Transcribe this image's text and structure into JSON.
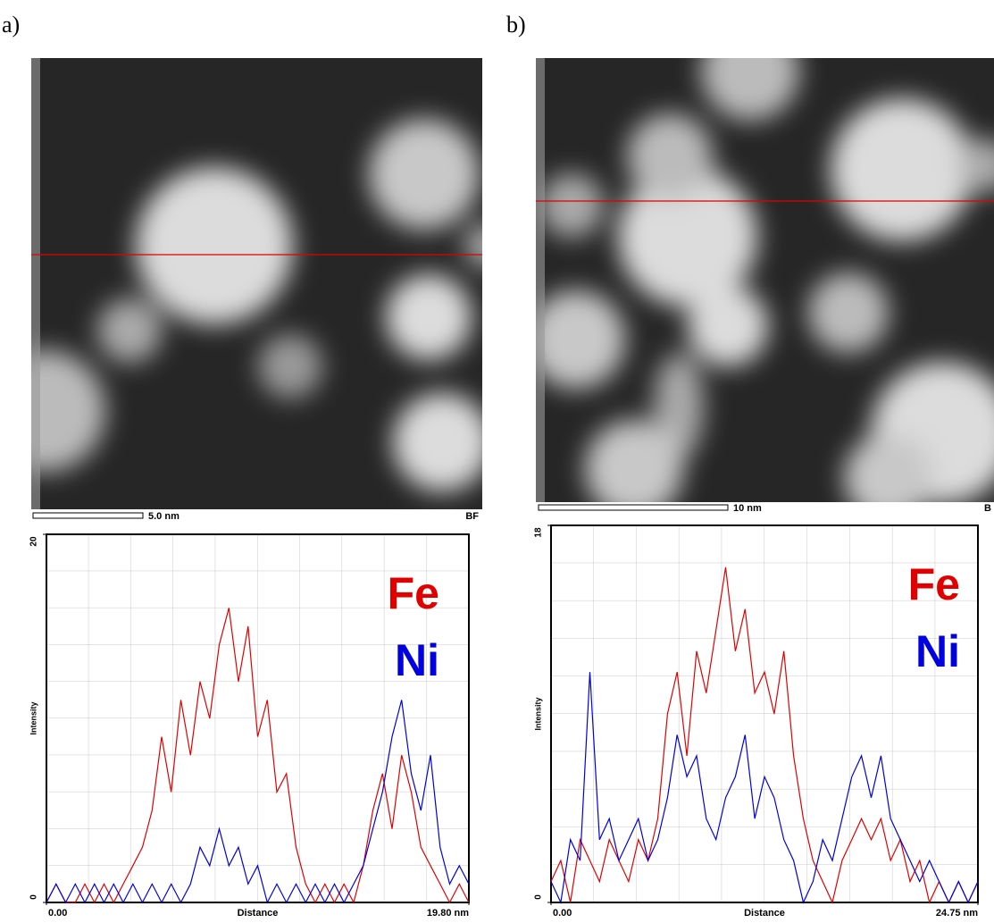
{
  "panel_labels": [
    "a)",
    "b)"
  ],
  "images": [
    {
      "scale_bar": "5.0 nm",
      "corner": "BF"
    },
    {
      "scale_bar": "10 nm",
      "corner": "B"
    }
  ],
  "chart_data": [
    {
      "type": "line",
      "y_label": "Intensity",
      "x_label": "Distance",
      "xlim": [
        0,
        19.8
      ],
      "xticks": [
        {
          "value": 0,
          "label": "0.00"
        },
        {
          "value": 19.8,
          "label": "19.80 nm"
        }
      ],
      "ylim": [
        0,
        20
      ],
      "yticks": [
        0,
        20
      ],
      "grid": true,
      "x": [
        0,
        0.45,
        0.9,
        1.35,
        1.8,
        2.25,
        2.7,
        3.15,
        3.6,
        4.05,
        4.5,
        4.95,
        5.4,
        5.85,
        6.3,
        6.75,
        7.2,
        7.65,
        8.1,
        8.55,
        9,
        9.45,
        9.9,
        10.35,
        10.8,
        11.25,
        11.7,
        12.15,
        12.6,
        13.05,
        13.5,
        13.95,
        14.4,
        14.85,
        15.3,
        15.75,
        16.2,
        16.65,
        17.1,
        17.55,
        18,
        18.45,
        18.9,
        19.35,
        19.8
      ],
      "series": [
        {
          "name": "Fe",
          "color": "#e00000",
          "values": [
            0,
            1,
            0,
            0,
            1,
            0,
            1,
            0,
            1,
            2,
            3,
            5,
            9,
            6,
            11,
            8,
            12,
            10,
            14,
            16,
            12,
            15,
            9,
            11,
            6,
            7,
            3,
            1,
            0,
            1,
            0,
            1,
            0,
            2,
            5,
            7,
            4,
            8,
            6,
            3,
            2,
            1,
            0,
            1,
            0
          ]
        },
        {
          "name": "Ni",
          "color": "#0000e0",
          "values": [
            0,
            1,
            0,
            1,
            0,
            1,
            0,
            1,
            0,
            1,
            0,
            1,
            0,
            1,
            0,
            1,
            3,
            2,
            4,
            2,
            3,
            1,
            2,
            0,
            1,
            0,
            1,
            0,
            1,
            0,
            1,
            0,
            1,
            2,
            4,
            6,
            9,
            11,
            7,
            5,
            8,
            3,
            1,
            2,
            1
          ]
        }
      ]
    },
    {
      "type": "line",
      "y_label": "Intensity",
      "x_label": "Distance",
      "xlim": [
        0,
        24.75
      ],
      "xticks": [
        {
          "value": 0,
          "label": "0.00"
        },
        {
          "value": 24.75,
          "label": "24.75 nm"
        }
      ],
      "ylim": [
        0,
        18
      ],
      "yticks": [
        0,
        18
      ],
      "grid": true,
      "x": [
        0,
        0.5625,
        1.125,
        1.6875,
        2.25,
        2.8125,
        3.375,
        3.9375,
        4.5,
        5.0625,
        5.625,
        6.1875,
        6.75,
        7.3125,
        7.875,
        8.4375,
        9,
        9.5625,
        10.125,
        10.6875,
        11.25,
        11.8125,
        12.375,
        12.9375,
        13.5,
        14.0625,
        14.625,
        15.1875,
        15.75,
        16.3125,
        16.875,
        17.4375,
        18,
        18.5625,
        19.125,
        19.6875,
        20.25,
        20.8125,
        21.375,
        21.9375,
        22.5,
        23.0625,
        23.625,
        24.1875,
        24.75
      ],
      "series": [
        {
          "name": "Fe",
          "color": "#e00000",
          "values": [
            1,
            2,
            0,
            3,
            2,
            1,
            3,
            2,
            1,
            3,
            2,
            4,
            9,
            11,
            7,
            12,
            10,
            13,
            16,
            12,
            14,
            10,
            11,
            9,
            12,
            7,
            4,
            2,
            1,
            0,
            2,
            3,
            4,
            3,
            4,
            2,
            3,
            1,
            2,
            0,
            1,
            0,
            1,
            0,
            1
          ]
        },
        {
          "name": "Ni",
          "color": "#0000e0",
          "values": [
            1,
            0,
            3,
            2,
            11,
            3,
            4,
            2,
            3,
            4,
            2,
            3,
            5,
            8,
            6,
            7,
            4,
            3,
            5,
            6,
            8,
            4,
            6,
            5,
            3,
            2,
            0,
            1,
            3,
            2,
            4,
            6,
            7,
            5,
            7,
            4,
            3,
            2,
            1,
            2,
            1,
            0,
            1,
            0,
            1
          ]
        }
      ]
    }
  ]
}
